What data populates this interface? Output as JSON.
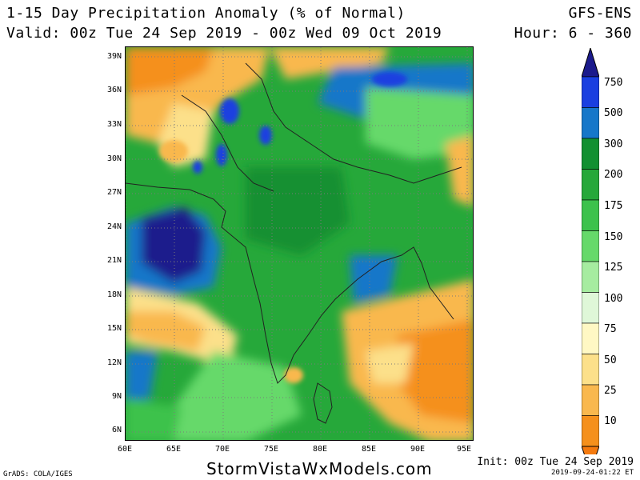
{
  "header": {
    "title": "1-15 Day Precipitation Anomaly (% of Normal)",
    "valid": "Valid: 00z Tue 24 Sep 2019 - 00z Wed 09 Oct 2019",
    "model": "GFS-ENS",
    "hour": "Hour: 6 - 360"
  },
  "map": {
    "lat_labels": [
      "39N",
      "36N",
      "33N",
      "30N",
      "27N",
      "24N",
      "21N",
      "18N",
      "15N",
      "12N",
      "9N",
      "6N"
    ],
    "lon_labels": [
      "60E",
      "65E",
      "70E",
      "75E",
      "80E",
      "85E",
      "90E",
      "95E"
    ],
    "region": "South Asia / Indian subcontinent"
  },
  "colorbar": {
    "labels": [
      "750",
      "500",
      "300",
      "200",
      "175",
      "150",
      "125",
      "100",
      "75",
      "50",
      "25",
      "10"
    ],
    "colors": [
      "#1b1a8c",
      "#1a3fe0",
      "#1677c9",
      "#129031",
      "#26a83a",
      "#3cc24c",
      "#66d96a",
      "#a6eca0",
      "#dff7d8",
      "#fff8c4",
      "#fce08a",
      "#f9b84e",
      "#f5901c",
      "#f47a0f"
    ]
  },
  "footer": {
    "site": "StormVistaWxModels.com",
    "credit": "GrADS: COLA/IGES",
    "init": "Init: 00z Tue 24 Sep 2019",
    "stamp": "2019-09-24-01:22 ET"
  }
}
